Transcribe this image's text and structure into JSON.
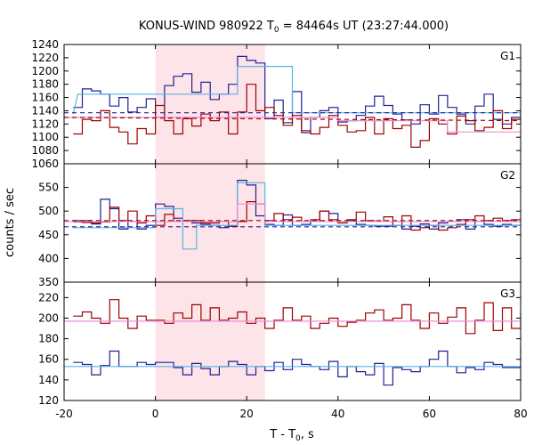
{
  "chart_data": {
    "type": "line",
    "title_main": "KONUS-WIND 980922 T",
    "title_sub": "0",
    "title_tail": " = 84464s UT (23:27:44.000)",
    "xlabel_main": "T - T",
    "xlabel_sub": "0",
    "xlabel_tail": ", s",
    "ylabel": "counts / sec",
    "xlim": [
      -20,
      80
    ],
    "x_ticks": [
      -20,
      0,
      20,
      40,
      60,
      80
    ],
    "shaded_interval": [
      0,
      24
    ],
    "colors": {
      "dark_red": "#a00000",
      "dark_blue": "#202098",
      "light_blue": "#5ab4e6",
      "pink": "#e890d8",
      "shade": "#fde4e8"
    },
    "panels": [
      {
        "label": "G1",
        "ylim": [
          1060,
          1240
        ],
        "y_ticks": [
          1060,
          1080,
          1100,
          1120,
          1140,
          1160,
          1180,
          1200,
          1220,
          1240
        ],
        "series": [
          {
            "color": "dark_blue",
            "style": "step",
            "x0": -18,
            "dx": 2,
            "values": [
              1145,
              1173,
              1170,
              1165,
              1147,
              1160,
              1138,
              1145,
              1158,
              1130,
              1178,
              1192,
              1196,
              1168,
              1183,
              1157,
              1165,
              1180,
              1222,
              1216,
              1212,
              1128,
              1156,
              1122,
              1169,
              1107,
              1130,
              1140,
              1145,
              1123,
              1125,
              1133,
              1147,
              1162,
              1148,
              1135,
              1126,
              1120,
              1149,
              1135,
              1163,
              1145,
              1135,
              1120,
              1147,
              1165,
              1127,
              1120,
              1130,
              1140
            ]
          },
          {
            "color": "dark_red",
            "style": "step",
            "x0": -18,
            "dx": 2,
            "values": [
              1105,
              1127,
              1125,
              1140,
              1115,
              1108,
              1090,
              1113,
              1105,
              1148,
              1125,
              1105,
              1128,
              1117,
              1135,
              1125,
              1138,
              1105,
              1138,
              1180,
              1140,
              1145,
              1133,
              1118,
              1133,
              1110,
              1105,
              1115,
              1133,
              1118,
              1108,
              1110,
              1130,
              1105,
              1128,
              1113,
              1118,
              1085,
              1095,
              1128,
              1120,
              1105,
              1132,
              1125,
              1110,
              1115,
              1140,
              1113,
              1127,
              1123
            ]
          },
          {
            "color": "light_blue",
            "style": "step",
            "points": [
              [
                -18,
                1135
              ],
              [
                -17,
                1165
              ],
              [
                18,
                1165
              ],
              [
                18,
                1207
              ],
              [
                30,
                1207
              ],
              [
                30,
                1137
              ],
              [
                80,
                1137
              ]
            ]
          },
          {
            "color": "pink",
            "style": "line",
            "points": [
              [
                -20,
                1130
              ],
              [
                40,
                1130
              ],
              [
                40,
                1125
              ],
              [
                64,
                1125
              ],
              [
                64,
                1108
              ],
              [
                80,
                1108
              ]
            ]
          },
          {
            "color": "dark_blue",
            "style": "dashed",
            "points": [
              [
                -20,
                1137
              ],
              [
                80,
                1137
              ]
            ]
          },
          {
            "color": "dark_red",
            "style": "dashed",
            "points": [
              [
                -20,
                1130
              ],
              [
                80,
                1125
              ]
            ]
          }
        ]
      },
      {
        "label": "G2",
        "ylim": [
          350,
          600
        ],
        "y_ticks": [
          350,
          400,
          450,
          500,
          550
        ],
        "series": [
          {
            "color": "dark_blue",
            "style": "step",
            "x0": -18,
            "dx": 2,
            "values": [
              480,
              480,
              473,
              525,
              505,
              462,
              478,
              462,
              470,
              515,
              510,
              485,
              478,
              475,
              472,
              470,
              465,
              468,
              565,
              555,
              490,
              472,
              470,
              492,
              470,
              472,
              478,
              500,
              495,
              478,
              480,
              472,
              470,
              468,
              468,
              478,
              462,
              468,
              473,
              462,
              475,
              478,
              482,
              462,
              478,
              472,
              468,
              472,
              470,
              470
            ]
          },
          {
            "color": "dark_red",
            "style": "step",
            "x0": -18,
            "dx": 2,
            "values": [
              477,
              476,
              475,
              477,
              508,
              480,
              500,
              475,
              490,
              470,
              493,
              478,
              480,
              480,
              475,
              475,
              478,
              468,
              478,
              520,
              515,
              480,
              495,
              482,
              487,
              478,
              482,
              500,
              482,
              475,
              482,
              498,
              480,
              478,
              488,
              470,
              490,
              460,
              465,
              470,
              460,
              465,
              472,
              482,
              490,
              480,
              485,
              480,
              482,
              485
            ]
          },
          {
            "color": "light_blue",
            "style": "step",
            "points": [
              [
                -18,
                465
              ],
              [
                0,
                465
              ],
              [
                0,
                505
              ],
              [
                6,
                505
              ],
              [
                6,
                420
              ],
              [
                9,
                420
              ],
              [
                9,
                470
              ],
              [
                18,
                470
              ],
              [
                18,
                560
              ],
              [
                24,
                560
              ],
              [
                24,
                470
              ],
              [
                80,
                470
              ]
            ]
          },
          {
            "color": "pink",
            "style": "line",
            "points": [
              [
                -20,
                478
              ],
              [
                18,
                478
              ],
              [
                18,
                515
              ],
              [
                24,
                515
              ],
              [
                24,
                478
              ],
              [
                80,
                478
              ]
            ]
          },
          {
            "color": "dark_blue",
            "style": "dashed",
            "points": [
              [
                -20,
                467
              ],
              [
                80,
                467
              ]
            ]
          },
          {
            "color": "dark_red",
            "style": "dashed",
            "points": [
              [
                -20,
                480
              ],
              [
                80,
                480
              ]
            ]
          }
        ]
      },
      {
        "label": "G3",
        "ylim": [
          120,
          235
        ],
        "y_ticks": [
          120,
          140,
          160,
          180,
          200,
          220
        ],
        "series": [
          {
            "color": "dark_blue",
            "style": "step",
            "x0": -18,
            "dx": 2,
            "values": [
              157,
              155,
              145,
              154,
              168,
              153,
              153,
              157,
              155,
              157,
              157,
              152,
              145,
              156,
              151,
              145,
              153,
              158,
              155,
              145,
              153,
              149,
              157,
              150,
              160,
              155,
              153,
              150,
              158,
              143,
              153,
              148,
              145,
              156,
              135,
              152,
              150,
              148,
              153,
              160,
              168,
              153,
              147,
              152,
              150,
              157,
              155,
              152,
              152,
              172
            ]
          },
          {
            "color": "dark_red",
            "style": "step",
            "x0": -18,
            "dx": 2,
            "values": [
              202,
              206,
              200,
              195,
              218,
              200,
              190,
              202,
              198,
              198,
              195,
              205,
              200,
              213,
              198,
              210,
              198,
              200,
              206,
              195,
              200,
              190,
              198,
              210,
              198,
              202,
              190,
              195,
              200,
              192,
              196,
              198,
              205,
              208,
              198,
              200,
              213,
              198,
              190,
              205,
              195,
              201,
              210,
              185,
              198,
              215,
              188,
              210,
              190,
              205
            ]
          },
          {
            "color": "light_blue",
            "style": "line",
            "points": [
              [
                -20,
                153
              ],
              [
                80,
                153
              ]
            ]
          },
          {
            "color": "pink",
            "style": "line",
            "points": [
              [
                -20,
                197
              ],
              [
                80,
                197
              ]
            ]
          }
        ]
      }
    ]
  }
}
